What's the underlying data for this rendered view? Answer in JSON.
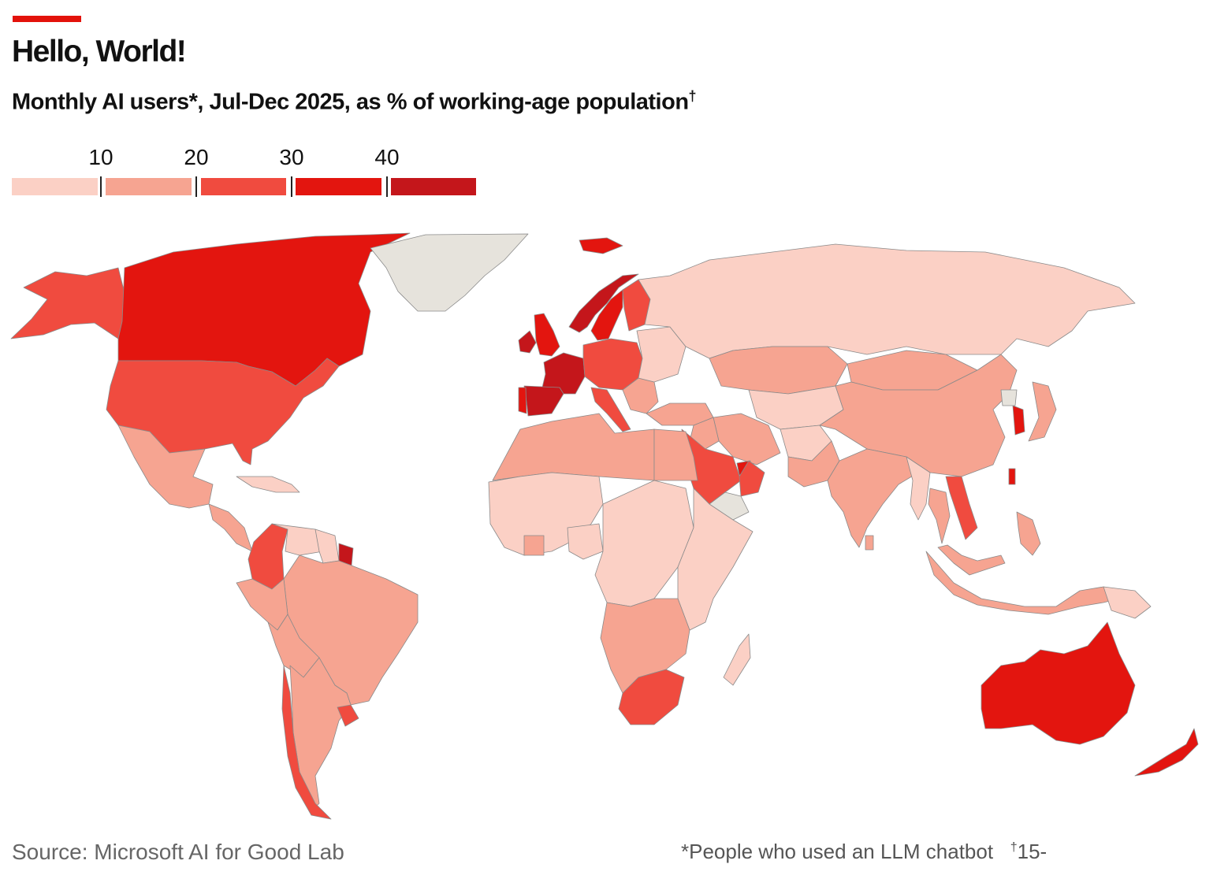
{
  "header": {
    "title": "Hello, World!",
    "subtitle": "Monthly AI users*, Jul-Dec 2025, as % of working-age population",
    "subtitle_mark": "†"
  },
  "legend": {
    "ticks": [
      "10",
      "20",
      "30",
      "40"
    ],
    "bins": [
      {
        "range": "<10",
        "color": "#fbd0c5"
      },
      {
        "range": "10-20",
        "color": "#f6a491"
      },
      {
        "range": "20-30",
        "color": "#f04b3f"
      },
      {
        "range": "30-40",
        "color": "#e3150f"
      },
      {
        "range": ">40",
        "color": "#c4161b"
      }
    ],
    "no_data_color": "#e6e3dc"
  },
  "map": {
    "regions": [
      {
        "name": "Alaska",
        "bin": 2
      },
      {
        "name": "Canada",
        "bin": 3
      },
      {
        "name": "United States",
        "bin": 2
      },
      {
        "name": "Greenland",
        "bin": -1
      },
      {
        "name": "Mexico",
        "bin": 1
      },
      {
        "name": "Central America",
        "bin": 1
      },
      {
        "name": "Caribbean",
        "bin": 0
      },
      {
        "name": "Colombia",
        "bin": 2
      },
      {
        "name": "Venezuela",
        "bin": 0
      },
      {
        "name": "Guyana",
        "bin": 0
      },
      {
        "name": "French Guiana",
        "bin": 4
      },
      {
        "name": "Brazil",
        "bin": 1
      },
      {
        "name": "Peru",
        "bin": 1
      },
      {
        "name": "Bolivia",
        "bin": 1
      },
      {
        "name": "Argentina",
        "bin": 1
      },
      {
        "name": "Chile",
        "bin": 2
      },
      {
        "name": "Uruguay",
        "bin": 2
      },
      {
        "name": "Iceland",
        "bin": 3
      },
      {
        "name": "Ireland",
        "bin": 4
      },
      {
        "name": "United Kingdom",
        "bin": 3
      },
      {
        "name": "France",
        "bin": 4
      },
      {
        "name": "Spain",
        "bin": 4
      },
      {
        "name": "Portugal",
        "bin": 3
      },
      {
        "name": "Norway",
        "bin": 4
      },
      {
        "name": "Sweden",
        "bin": 3
      },
      {
        "name": "Finland",
        "bin": 2
      },
      {
        "name": "Central Europe",
        "bin": 2
      },
      {
        "name": "Italy",
        "bin": 2
      },
      {
        "name": "Balkans",
        "bin": 1
      },
      {
        "name": "Eastern Europe",
        "bin": 0
      },
      {
        "name": "Turkey",
        "bin": 1
      },
      {
        "name": "Russia",
        "bin": 0
      },
      {
        "name": "Kazakhstan",
        "bin": 1
      },
      {
        "name": "Central Asia",
        "bin": 0
      },
      {
        "name": "Mongolia",
        "bin": 1
      },
      {
        "name": "China",
        "bin": 1
      },
      {
        "name": "South Korea",
        "bin": 3
      },
      {
        "name": "North Korea",
        "bin": -1
      },
      {
        "name": "Japan",
        "bin": 1
      },
      {
        "name": "Taiwan",
        "bin": 3
      },
      {
        "name": "Iran",
        "bin": 1
      },
      {
        "name": "Iraq",
        "bin": 1
      },
      {
        "name": "Saudi Arabia",
        "bin": 2
      },
      {
        "name": "UAE",
        "bin": 3
      },
      {
        "name": "Oman",
        "bin": 2
      },
      {
        "name": "Yemen",
        "bin": -1
      },
      {
        "name": "Afghanistan",
        "bin": 0
      },
      {
        "name": "Pakistan",
        "bin": 1
      },
      {
        "name": "India",
        "bin": 1
      },
      {
        "name": "Sri Lanka",
        "bin": 1
      },
      {
        "name": "Myanmar",
        "bin": 0
      },
      {
        "name": "Thailand",
        "bin": 1
      },
      {
        "name": "Vietnam",
        "bin": 2
      },
      {
        "name": "Malaysia",
        "bin": 1
      },
      {
        "name": "Indonesia",
        "bin": 1
      },
      {
        "name": "Philippines",
        "bin": 1
      },
      {
        "name": "Papua New Guinea",
        "bin": 0
      },
      {
        "name": "Australia",
        "bin": 3
      },
      {
        "name": "New Zealand",
        "bin": 3
      },
      {
        "name": "North Africa",
        "bin": 1
      },
      {
        "name": "Egypt",
        "bin": 1
      },
      {
        "name": "West Africa",
        "bin": 0
      },
      {
        "name": "Nigeria",
        "bin": 0
      },
      {
        "name": "Ghana",
        "bin": 1
      },
      {
        "name": "Central Africa",
        "bin": 0
      },
      {
        "name": "East Africa",
        "bin": 0
      },
      {
        "name": "Southern Africa",
        "bin": 1
      },
      {
        "name": "South Africa",
        "bin": 2
      },
      {
        "name": "Madagascar",
        "bin": 0
      }
    ]
  },
  "footer": {
    "source": "Source: Microsoft AI for Good Lab",
    "note_star": "*People who used an LLM chatbot",
    "note_dagger_mark": "†",
    "note_dagger": "15-"
  }
}
